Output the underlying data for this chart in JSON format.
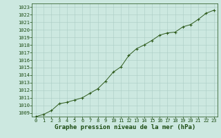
{
  "x": [
    0,
    1,
    2,
    3,
    4,
    5,
    6,
    7,
    8,
    9,
    10,
    11,
    12,
    13,
    14,
    15,
    16,
    17,
    18,
    19,
    20,
    21,
    22,
    23
  ],
  "y": [
    1008.5,
    1008.8,
    1009.3,
    1010.2,
    1010.4,
    1010.7,
    1011.0,
    1011.6,
    1012.2,
    1013.2,
    1014.4,
    1015.1,
    1016.6,
    1017.5,
    1018.0,
    1018.6,
    1019.3,
    1019.6,
    1019.7,
    1020.4,
    1020.7,
    1021.4,
    1022.2,
    1022.6
  ],
  "ylim_min": 1008.5,
  "ylim_max": 1023.5,
  "xlim_min": -0.5,
  "xlim_max": 23.5,
  "yticks": [
    1009,
    1010,
    1011,
    1012,
    1013,
    1014,
    1015,
    1016,
    1017,
    1018,
    1019,
    1020,
    1021,
    1022,
    1023
  ],
  "xticks": [
    0,
    1,
    2,
    3,
    4,
    5,
    6,
    7,
    8,
    9,
    10,
    11,
    12,
    13,
    14,
    15,
    16,
    17,
    18,
    19,
    20,
    21,
    22,
    23
  ],
  "line_color": "#2d5a1b",
  "marker": "+",
  "bg_color": "#cce8e0",
  "grid_color": "#aaccc4",
  "xlabel": "Graphe pression niveau de la mer (hPa)",
  "xlabel_color": "#1a4a10",
  "tick_color": "#1a4a10",
  "tick_fontsize": 5.0,
  "xlabel_fontsize": 6.5,
  "line_width": 0.7,
  "marker_size": 3.5,
  "marker_edge_width": 0.8
}
